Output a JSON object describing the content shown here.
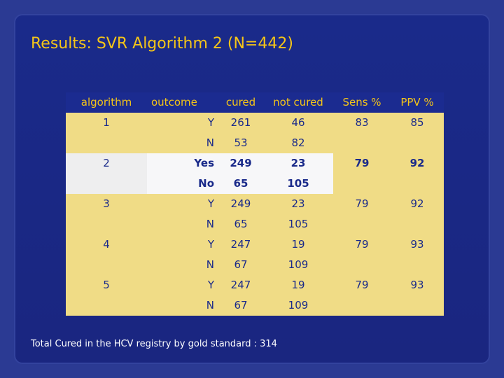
{
  "slide": {
    "title": "Results: SVR Algorithm  2 (N=442)",
    "footnote": "Total Cured in the HCV registry by gold standard : 314"
  },
  "table": {
    "headers": [
      "algorithm",
      "outcome",
      "cured",
      "not cured",
      "Sens %",
      "PPV %"
    ],
    "groups": [
      {
        "algorithm": "1",
        "sens": "83",
        "ppv": "85",
        "rows": [
          {
            "outcome": "Y",
            "cured": "261",
            "not_cured": "46"
          },
          {
            "outcome": "N",
            "cured": "53",
            "not_cured": "82"
          }
        ]
      },
      {
        "algorithm": "2",
        "sens": "79",
        "ppv": "92",
        "rows": [
          {
            "outcome": "Yes",
            "cured": "249",
            "not_cured": "23"
          },
          {
            "outcome": "No",
            "cured": "65",
            "not_cured": "105"
          }
        ]
      },
      {
        "algorithm": "3",
        "sens": "79",
        "ppv": "92",
        "rows": [
          {
            "outcome": "Y",
            "cured": "249",
            "not_cured": "23"
          },
          {
            "outcome": "N",
            "cured": "65",
            "not_cured": "105"
          }
        ]
      },
      {
        "algorithm": "4",
        "sens": "79",
        "ppv": "93",
        "rows": [
          {
            "outcome": "Y",
            "cured": "247",
            "not_cured": "19"
          },
          {
            "outcome": "N",
            "cured": "67",
            "not_cured": "109"
          }
        ]
      },
      {
        "algorithm": "5",
        "sens": "79",
        "ppv": "93",
        "rows": [
          {
            "outcome": "Y",
            "cured": "247",
            "not_cured": "19"
          },
          {
            "outcome": "N",
            "cured": "67",
            "not_cured": "109"
          }
        ]
      }
    ]
  },
  "colors": {
    "background": "#2b3a93",
    "title": "#f5c518",
    "table_fill": "#f0dc86",
    "highlight_fill": "#f7f7f9",
    "header_text": "#f5c518",
    "cell_text": "#1a2a8a"
  }
}
